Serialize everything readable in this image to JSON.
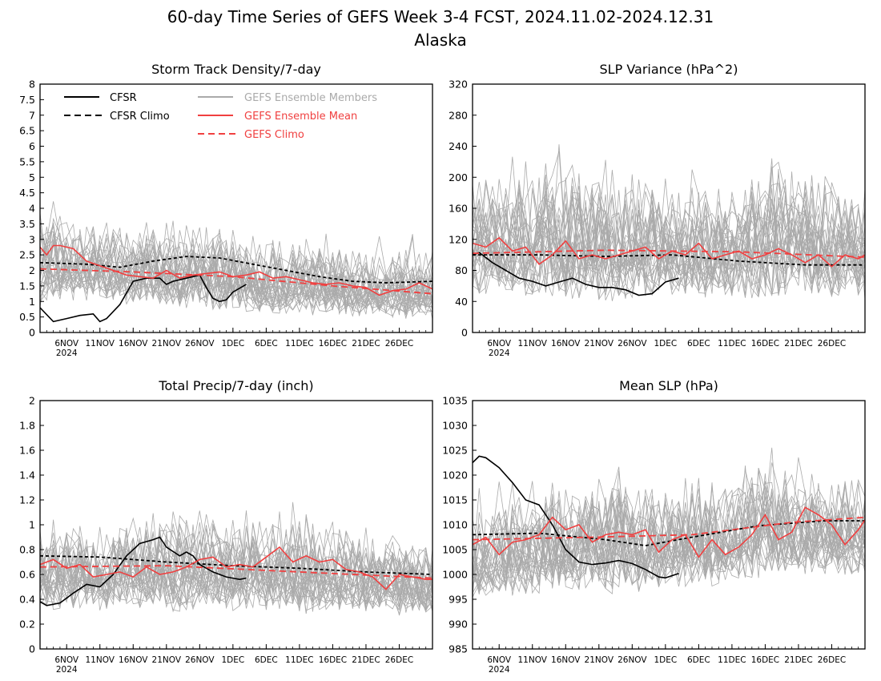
{
  "figure": {
    "title_line1": "60-day Time Series of GEFS Week 3-4 FCST, 2024.11.02-2024.12.31",
    "title_line2": "Alaska"
  },
  "colors": {
    "cfsr": "#000000",
    "members": "#aaaaaa",
    "ens_mean": "#f04040",
    "gefs_climo": "#f04040"
  },
  "x_axis": {
    "tick_labels": [
      "6NOV",
      "11NOV",
      "16NOV",
      "21NOV",
      "26NOV",
      "1DEC",
      "6DEC",
      "11DEC",
      "16DEC",
      "21DEC",
      "26DEC"
    ],
    "year_label": "2024",
    "tick_dates": [
      "2024-11-06",
      "2024-11-11",
      "2024-11-16",
      "2024-11-21",
      "2024-11-26",
      "2024-12-01",
      "2024-12-06",
      "2024-12-11",
      "2024-12-16",
      "2024-12-21",
      "2024-12-26"
    ]
  },
  "legend": {
    "cfsr": "CFSR",
    "cfsr_climo": "CFSR Climo",
    "gefs_members": "GEFS Ensemble Members",
    "gefs_mean": "GEFS Ensemble Mean",
    "gefs_climo": "GEFS Climo"
  },
  "chart_data": [
    {
      "type": "line",
      "title": "Storm Track Density/7-day",
      "ylim": [
        0,
        8
      ],
      "yticks": [
        "0",
        "0.5",
        "1",
        "1.5",
        "2",
        "2.5",
        "3",
        "3.5",
        "4",
        "4.5",
        "5",
        "5.5",
        "6",
        "6.5",
        "7",
        "7.5",
        "8"
      ],
      "xlim": [
        "2024-11-02",
        "2024-12-31"
      ],
      "legend_position": "top-left",
      "series": [
        {
          "name": "CFSR",
          "style": "solid-black",
          "x": [
            "2024-11-02",
            "2024-11-04",
            "2024-11-06",
            "2024-11-08",
            "2024-11-10",
            "2024-11-11",
            "2024-11-12",
            "2024-11-14",
            "2024-11-16",
            "2024-11-18",
            "2024-11-20",
            "2024-11-21",
            "2024-11-22",
            "2024-11-24",
            "2024-11-26",
            "2024-11-27",
            "2024-11-28",
            "2024-11-29",
            "2024-11-30",
            "2024-12-01",
            "2024-12-03"
          ],
          "y": [
            0.8,
            0.35,
            0.45,
            0.55,
            0.6,
            0.35,
            0.45,
            0.9,
            1.65,
            1.75,
            1.75,
            1.55,
            1.65,
            1.75,
            1.85,
            1.45,
            1.1,
            1.0,
            1.05,
            1.3,
            1.55
          ]
        },
        {
          "name": "CFSR Climo",
          "style": "dashed-black",
          "x": [
            "2024-11-02",
            "2024-11-09",
            "2024-11-14",
            "2024-11-19",
            "2024-11-24",
            "2024-11-29",
            "2024-12-04",
            "2024-12-09",
            "2024-12-14",
            "2024-12-19",
            "2024-12-24",
            "2024-12-31"
          ],
          "y": [
            2.25,
            2.2,
            2.1,
            2.3,
            2.45,
            2.4,
            2.2,
            2.0,
            1.8,
            1.65,
            1.6,
            1.65
          ]
        },
        {
          "name": "GEFS Ensemble Mean",
          "style": "solid-red",
          "x": [
            "2024-11-02",
            "2024-11-03",
            "2024-11-04",
            "2024-11-05",
            "2024-11-07",
            "2024-11-09",
            "2024-11-11",
            "2024-11-13",
            "2024-11-15",
            "2024-11-17",
            "2024-11-19",
            "2024-11-21",
            "2024-11-23",
            "2024-11-25",
            "2024-11-27",
            "2024-11-29",
            "2024-12-01",
            "2024-12-03",
            "2024-12-05",
            "2024-12-07",
            "2024-12-09",
            "2024-12-11",
            "2024-12-13",
            "2024-12-15",
            "2024-12-17",
            "2024-12-19",
            "2024-12-21",
            "2024-12-23",
            "2024-12-25",
            "2024-12-27",
            "2024-12-29",
            "2024-12-31"
          ],
          "y": [
            2.75,
            2.5,
            2.8,
            2.8,
            2.7,
            2.3,
            2.15,
            2.0,
            1.85,
            1.8,
            1.75,
            2.0,
            1.75,
            1.85,
            1.9,
            1.95,
            1.8,
            1.85,
            1.95,
            1.75,
            1.8,
            1.7,
            1.6,
            1.55,
            1.6,
            1.5,
            1.45,
            1.2,
            1.35,
            1.4,
            1.6,
            1.4
          ]
        },
        {
          "name": "GEFS Climo",
          "style": "dashed-red",
          "x": [
            "2024-11-02",
            "2024-11-16",
            "2024-12-01",
            "2024-12-16",
            "2024-12-31"
          ],
          "y": [
            2.05,
            1.95,
            1.8,
            1.5,
            1.25
          ]
        }
      ],
      "members": {
        "count": 31,
        "band_low": [
          0.8,
          1.0,
          1.0,
          0.9,
          0.9,
          0.8,
          0.7,
          0.6,
          0.6,
          0.6,
          0.5,
          0.5,
          0.5,
          0.4,
          0.4
        ],
        "band_high": [
          4.7,
          4.4,
          4.3,
          4.0,
          4.4,
          4.2,
          4.3,
          3.9,
          3.8,
          3.6,
          3.5,
          3.3,
          3.2,
          3.2,
          3.4
        ]
      }
    },
    {
      "type": "line",
      "title": "SLP Variance (hPa^2)",
      "ylim": [
        0,
        320
      ],
      "yticks": [
        "0",
        "40",
        "80",
        "120",
        "160",
        "200",
        "240",
        "280",
        "320"
      ],
      "xlim": [
        "2024-11-02",
        "2024-12-31"
      ],
      "series": [
        {
          "name": "CFSR",
          "style": "solid-black",
          "x": [
            "2024-11-02",
            "2024-11-03",
            "2024-11-05",
            "2024-11-07",
            "2024-11-09",
            "2024-11-11",
            "2024-11-13",
            "2024-11-15",
            "2024-11-17",
            "2024-11-19",
            "2024-11-21",
            "2024-11-23",
            "2024-11-25",
            "2024-11-27",
            "2024-11-29",
            "2024-12-01",
            "2024-12-03"
          ],
          "y": [
            100,
            103,
            90,
            80,
            70,
            66,
            60,
            65,
            70,
            62,
            58,
            58,
            55,
            48,
            50,
            65,
            70
          ]
        },
        {
          "name": "CFSR Climo",
          "style": "dashed-black",
          "x": [
            "2024-11-02",
            "2024-11-12",
            "2024-11-22",
            "2024-12-02",
            "2024-12-12",
            "2024-12-22",
            "2024-12-31"
          ],
          "y": [
            100,
            100,
            98,
            100,
            92,
            87,
            87
          ]
        },
        {
          "name": "GEFS Ensemble Mean",
          "style": "solid-red",
          "x": [
            "2024-11-02",
            "2024-11-04",
            "2024-11-06",
            "2024-11-08",
            "2024-11-10",
            "2024-11-12",
            "2024-11-14",
            "2024-11-16",
            "2024-11-18",
            "2024-11-20",
            "2024-11-22",
            "2024-11-24",
            "2024-11-26",
            "2024-11-28",
            "2024-11-30",
            "2024-12-02",
            "2024-12-04",
            "2024-12-06",
            "2024-12-08",
            "2024-12-10",
            "2024-12-12",
            "2024-12-14",
            "2024-12-16",
            "2024-12-18",
            "2024-12-20",
            "2024-12-22",
            "2024-12-24",
            "2024-12-26",
            "2024-12-28",
            "2024-12-30",
            "2024-12-31"
          ],
          "y": [
            115,
            110,
            122,
            105,
            110,
            88,
            100,
            118,
            95,
            100,
            95,
            100,
            105,
            110,
            95,
            105,
            100,
            115,
            95,
            100,
            105,
            95,
            100,
            108,
            100,
            90,
            100,
            85,
            100,
            95,
            100
          ]
        },
        {
          "name": "GEFS Climo",
          "style": "dashed-red",
          "x": [
            "2024-11-02",
            "2024-11-22",
            "2024-12-12",
            "2024-12-31"
          ],
          "y": [
            102,
            106,
            104,
            97
          ]
        }
      ],
      "members": {
        "count": 31,
        "band_low": [
          45,
          50,
          45,
          40,
          40,
          40,
          45,
          45,
          45,
          45,
          40,
          45,
          45,
          45,
          40
        ],
        "band_high": [
          260,
          240,
          250,
          270,
          240,
          230,
          250,
          220,
          230,
          220,
          250,
          270,
          250,
          230,
          240
        ]
      }
    },
    {
      "type": "line",
      "title": "Total Precip/7-day (inch)",
      "ylim": [
        0,
        2
      ],
      "yticks": [
        "0",
        "0.2",
        "0.4",
        "0.6",
        "0.8",
        "1",
        "1.2",
        "1.4",
        "1.6",
        "1.8",
        "2"
      ],
      "xlim": [
        "2024-11-02",
        "2024-12-31"
      ],
      "series": [
        {
          "name": "CFSR",
          "style": "solid-black",
          "x": [
            "2024-11-02",
            "2024-11-03",
            "2024-11-05",
            "2024-11-07",
            "2024-11-09",
            "2024-11-11",
            "2024-11-13",
            "2024-11-15",
            "2024-11-17",
            "2024-11-19",
            "2024-11-20",
            "2024-11-21",
            "2024-11-23",
            "2024-11-24",
            "2024-11-25",
            "2024-11-26",
            "2024-11-28",
            "2024-11-30",
            "2024-12-02",
            "2024-12-03"
          ],
          "y": [
            0.38,
            0.35,
            0.37,
            0.45,
            0.52,
            0.5,
            0.6,
            0.75,
            0.85,
            0.88,
            0.9,
            0.82,
            0.75,
            0.78,
            0.75,
            0.68,
            0.62,
            0.58,
            0.56,
            0.57
          ]
        },
        {
          "name": "CFSR Climo",
          "style": "dashed-black",
          "x": [
            "2024-11-02",
            "2024-11-11",
            "2024-11-21",
            "2024-12-01",
            "2024-12-11",
            "2024-12-21",
            "2024-12-31"
          ],
          "y": [
            0.75,
            0.74,
            0.7,
            0.67,
            0.65,
            0.62,
            0.6
          ]
        },
        {
          "name": "GEFS Ensemble Mean",
          "style": "solid-red",
          "x": [
            "2024-11-02",
            "2024-11-04",
            "2024-11-06",
            "2024-11-08",
            "2024-11-10",
            "2024-11-12",
            "2024-11-14",
            "2024-11-16",
            "2024-11-18",
            "2024-11-20",
            "2024-11-22",
            "2024-11-24",
            "2024-11-26",
            "2024-11-28",
            "2024-11-30",
            "2024-12-02",
            "2024-12-04",
            "2024-12-06",
            "2024-12-08",
            "2024-12-10",
            "2024-12-12",
            "2024-12-14",
            "2024-12-16",
            "2024-12-18",
            "2024-12-20",
            "2024-12-22",
            "2024-12-24",
            "2024-12-26",
            "2024-12-28",
            "2024-12-30",
            "2024-12-31"
          ],
          "y": [
            0.68,
            0.72,
            0.65,
            0.68,
            0.58,
            0.6,
            0.62,
            0.58,
            0.66,
            0.6,
            0.62,
            0.66,
            0.72,
            0.74,
            0.66,
            0.68,
            0.66,
            0.74,
            0.82,
            0.7,
            0.75,
            0.7,
            0.72,
            0.64,
            0.62,
            0.58,
            0.48,
            0.6,
            0.58,
            0.56,
            0.56
          ]
        },
        {
          "name": "GEFS Climo",
          "style": "dashed-red",
          "x": [
            "2024-11-02",
            "2024-11-21",
            "2024-12-11",
            "2024-12-31"
          ],
          "y": [
            0.66,
            0.67,
            0.62,
            0.57
          ]
        }
      ],
      "members": {
        "count": 31,
        "band_low": [
          0.3,
          0.3,
          0.3,
          0.35,
          0.3,
          0.3,
          0.3,
          0.3,
          0.3,
          0.3,
          0.25,
          0.3,
          0.3,
          0.25,
          0.25
        ],
        "band_high": [
          1.2,
          1.15,
          1.15,
          1.2,
          1.3,
          1.4,
          1.3,
          1.25,
          1.2,
          1.3,
          1.15,
          1.1,
          1.0,
          1.1,
          1.0
        ]
      }
    },
    {
      "type": "line",
      "title": "Mean SLP (hPa)",
      "ylim": [
        985,
        1035
      ],
      "yticks": [
        "985",
        "990",
        "995",
        "1000",
        "1005",
        "1010",
        "1015",
        "1020",
        "1025",
        "1030",
        "1035"
      ],
      "xlim": [
        "2024-11-02",
        "2024-12-31"
      ],
      "series": [
        {
          "name": "CFSR",
          "style": "solid-black",
          "x": [
            "2024-11-02",
            "2024-11-03",
            "2024-11-04",
            "2024-11-06",
            "2024-11-08",
            "2024-11-10",
            "2024-11-12",
            "2024-11-14",
            "2024-11-16",
            "2024-11-18",
            "2024-11-20",
            "2024-11-22",
            "2024-11-24",
            "2024-11-26",
            "2024-11-28",
            "2024-11-30",
            "2024-12-01",
            "2024-12-03"
          ],
          "y": [
            1022.5,
            1023.8,
            1023.5,
            1021.5,
            1018.5,
            1015.0,
            1014.0,
            1010.0,
            1005.0,
            1002.5,
            1002.0,
            1002.3,
            1002.8,
            1002.2,
            1001.0,
            999.5,
            999.3,
            1000.2
          ]
        },
        {
          "name": "CFSR Climo",
          "style": "dashed-black",
          "x": [
            "2024-11-02",
            "2024-11-12",
            "2024-11-22",
            "2024-11-28",
            "2024-12-05",
            "2024-12-15",
            "2024-12-25",
            "2024-12-31"
          ],
          "y": [
            1008.0,
            1008.3,
            1007.0,
            1005.8,
            1007.5,
            1009.8,
            1010.8,
            1010.8
          ]
        },
        {
          "name": "GEFS Ensemble Mean",
          "style": "solid-red",
          "x": [
            "2024-11-02",
            "2024-11-04",
            "2024-11-06",
            "2024-11-08",
            "2024-11-10",
            "2024-11-12",
            "2024-11-14",
            "2024-11-16",
            "2024-11-18",
            "2024-11-20",
            "2024-11-22",
            "2024-11-24",
            "2024-11-26",
            "2024-11-28",
            "2024-11-30",
            "2024-12-02",
            "2024-12-04",
            "2024-12-06",
            "2024-12-08",
            "2024-12-10",
            "2024-12-12",
            "2024-12-14",
            "2024-12-16",
            "2024-12-18",
            "2024-12-20",
            "2024-12-22",
            "2024-12-24",
            "2024-12-26",
            "2024-12-28",
            "2024-12-30",
            "2024-12-31"
          ],
          "y": [
            1006.0,
            1007.5,
            1004.0,
            1006.5,
            1007.0,
            1008.0,
            1011.5,
            1009.0,
            1010.0,
            1006.5,
            1008.0,
            1008.5,
            1008.0,
            1009.0,
            1004.5,
            1007.0,
            1008.0,
            1003.5,
            1007.0,
            1004.0,
            1005.5,
            1008.0,
            1012.0,
            1007.0,
            1008.5,
            1013.5,
            1012.0,
            1010.0,
            1006.0,
            1009.0,
            1011.0
          ]
        },
        {
          "name": "GEFS Climo",
          "style": "dashed-red",
          "x": [
            "2024-11-02",
            "2024-11-20",
            "2024-12-05",
            "2024-12-20",
            "2024-12-31"
          ],
          "y": [
            1007.0,
            1007.5,
            1008.0,
            1010.5,
            1011.5
          ]
        }
      ],
      "members": {
        "count": 31,
        "band_low": [
          995,
          995,
          996,
          996,
          996,
          996,
          996,
          997,
          997,
          998,
          999,
          1000,
          1000,
          1000,
          999
        ],
        "band_high": [
          1017,
          1020,
          1021,
          1023,
          1024,
          1025,
          1022,
          1023,
          1024,
          1023,
          1028,
          1027,
          1024,
          1024,
          1026
        ]
      }
    }
  ]
}
